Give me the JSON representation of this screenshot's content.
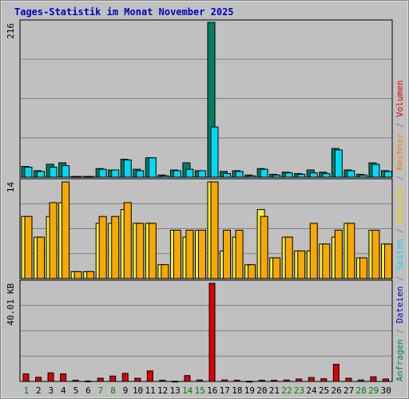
{
  "title": "Tages-Statistik im Monat November 2025",
  "colors": {
    "title": "#0000c0",
    "anfragen": "#008060",
    "dateien": "#00d8f8",
    "seiten": "#f0f040",
    "besuche": "#f8a800",
    "rechner": "#f08000",
    "volumen": "#e00000",
    "weekend_label": "#008000",
    "weekday_label": "#000000"
  },
  "legend": [
    {
      "text": "Anfragen",
      "color": "#008060"
    },
    {
      "text": " / ",
      "color": "#808080"
    },
    {
      "text": "Dateien",
      "color": "#0000c0"
    },
    {
      "text": " / ",
      "color": "#808080"
    },
    {
      "text": "Seiten",
      "color": "#00d8f8"
    },
    {
      "text": " / ",
      "color": "#808080"
    },
    {
      "text": "Besuche",
      "color": "#f0d000"
    },
    {
      "text": " / ",
      "color": "#808080"
    },
    {
      "text": "Rechner",
      "color": "#f08000"
    },
    {
      "text": " / ",
      "color": "#808080"
    },
    {
      "text": "Volumen",
      "color": "#e00000"
    }
  ],
  "chart_data": [
    {
      "type": "bar",
      "panel": "hits",
      "ymax_label": "216",
      "ymax": 216,
      "x": [
        "1",
        "2",
        "3",
        "4",
        "5",
        "6",
        "7",
        "8",
        "9",
        "10",
        "11",
        "12",
        "13",
        "14",
        "15",
        "16",
        "17",
        "18",
        "19",
        "20",
        "21",
        "22",
        "23",
        "24",
        "25",
        "26",
        "27",
        "28",
        "29",
        "30"
      ],
      "weekend": [
        true,
        false,
        false,
        false,
        false,
        false,
        true,
        true,
        false,
        false,
        false,
        false,
        false,
        true,
        true,
        false,
        false,
        false,
        false,
        false,
        false,
        true,
        true,
        false,
        false,
        false,
        false,
        true,
        true,
        false
      ],
      "series": [
        {
          "name": "Anfragen",
          "values": [
            15,
            9,
            18,
            20,
            1,
            1,
            12,
            10,
            25,
            11,
            27,
            3,
            10,
            20,
            9,
            216,
            8,
            9,
            3,
            12,
            4,
            7,
            5,
            10,
            7,
            40,
            10,
            4,
            20,
            9
          ]
        },
        {
          "name": "Dateien",
          "values": [
            14,
            8,
            14,
            16,
            1,
            1,
            11,
            10,
            24,
            9,
            27,
            2,
            9,
            11,
            9,
            70,
            5,
            8,
            2,
            11,
            3,
            6,
            4,
            6,
            5,
            38,
            9,
            3,
            18,
            8
          ]
        }
      ]
    },
    {
      "type": "bar",
      "panel": "visits",
      "ymax_label": "14",
      "ymax": 14,
      "series": [
        {
          "name": "Seiten",
          "values": [
            9,
            6,
            9,
            11,
            1,
            1,
            8,
            8,
            10,
            8,
            8,
            2,
            7,
            6,
            7,
            14,
            4,
            6,
            2,
            10,
            3,
            6,
            4,
            4,
            5,
            6,
            8,
            3,
            7,
            5
          ]
        },
        {
          "name": "Besuche",
          "values": [
            9,
            6,
            11,
            14,
            1,
            1,
            9,
            9,
            11,
            8,
            8,
            2,
            7,
            7,
            7,
            14,
            7,
            7,
            2,
            9,
            3,
            6,
            4,
            8,
            5,
            7,
            8,
            3,
            7,
            5
          ]
        }
      ]
    },
    {
      "type": "bar",
      "panel": "volume",
      "ymax_label": "40.01 KB",
      "ymax": 40.01,
      "series": [
        {
          "name": "Volumen",
          "values": [
            3.1,
            1.7,
            3.5,
            3.1,
            0.5,
            0.2,
            1.3,
            2.2,
            3.3,
            1.3,
            4.3,
            0.5,
            0.1,
            2.4,
            0.6,
            40.01,
            0.6,
            0.5,
            0.1,
            0.5,
            0.5,
            0.6,
            1.0,
            1.6,
            1.1,
            7.0,
            1.3,
            0.6,
            1.9,
            1.0
          ]
        }
      ]
    }
  ]
}
